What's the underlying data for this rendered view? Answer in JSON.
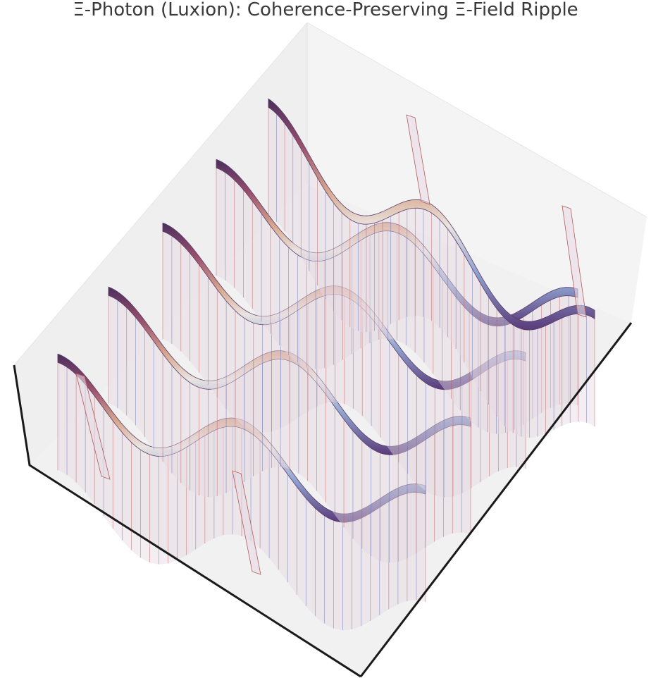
{
  "chart_data": {
    "type": "surface",
    "title": "Ξ-Photon (Luxion): Coherence-Preserving Ξ-Field Ripple",
    "xlabel": "",
    "ylabel": "",
    "zlabel": "",
    "axes_visible": false,
    "grid": false,
    "colormap": "twilight",
    "pane_color": "#f2f2f2",
    "edge_color": "#1a1a1a",
    "ribbon_count": 5,
    "waves_per_ribbon": 2,
    "ribbons": [
      {
        "name": "",
        "start": [
          82,
          519
        ],
        "end": [
          604,
          706
        ],
        "top_start": 519
      },
      {
        "name": "",
        "start": [
          154,
          424
        ],
        "end": [
          668,
          610
        ],
        "top_start": 424
      },
      {
        "name": "",
        "start": [
          231,
          333
        ],
        "end": [
          746,
          517
        ],
        "top_start": 333
      },
      {
        "name": "",
        "start": [
          307,
          243
        ],
        "end": [
          820,
          427
        ],
        "top_start": 243
      },
      {
        "name": "",
        "start": [
          381,
          157
        ],
        "end": [
          844,
          457
        ],
        "top_start": 157
      }
    ]
  }
}
